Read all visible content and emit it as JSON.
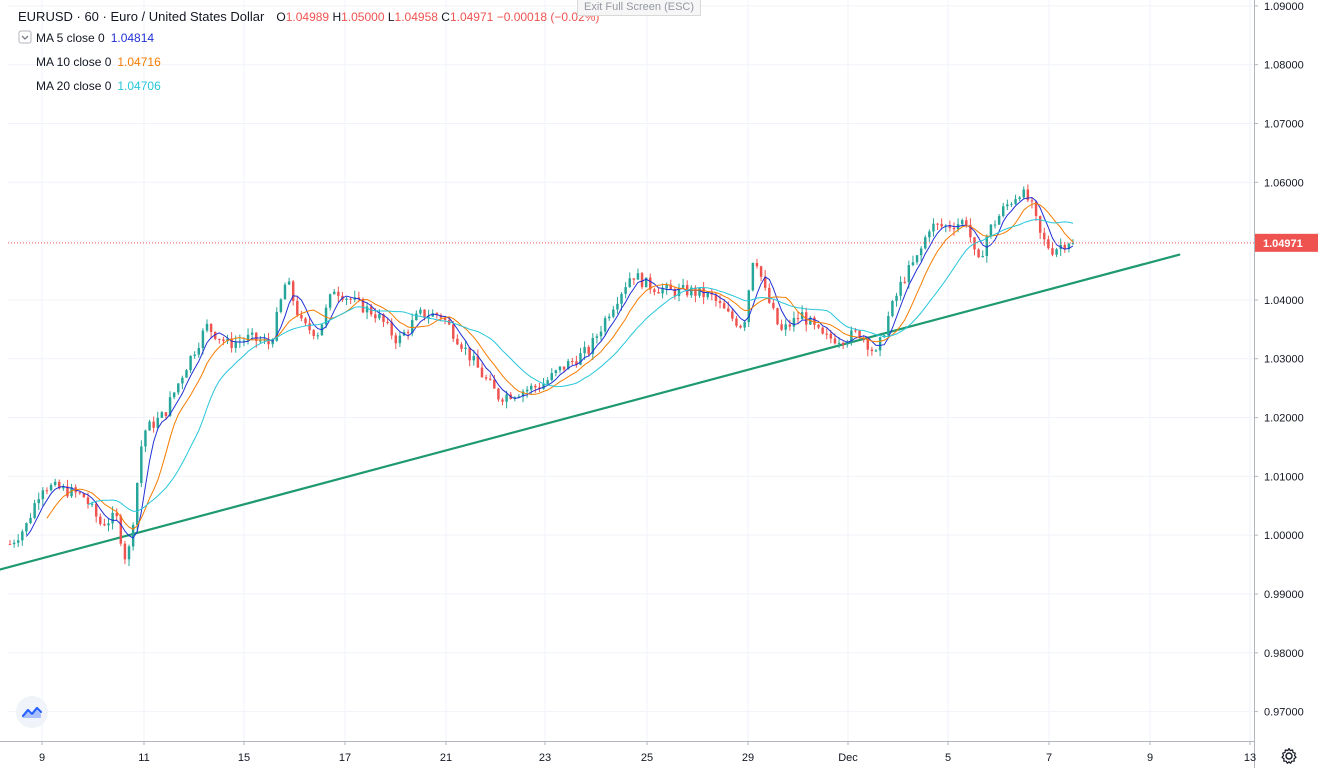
{
  "header": {
    "symbol_title": "EURUSD · 60 · Euro / United States Dollar",
    "ohlc": {
      "o_label": "O",
      "o_value": "1.04989",
      "h_label": "H",
      "h_value": "1.05000",
      "l_label": "L",
      "l_value": "1.04958",
      "c_label": "C",
      "c_value": "1.04971",
      "change": "−0.00018 (−0.02%)"
    },
    "exit_fullscreen": "Exit Full Screen (ESC)"
  },
  "indicators": [
    {
      "label": "MA 5 close 0",
      "value": "1.04814",
      "color": "#2130d6"
    },
    {
      "label": "MA 10 close 0",
      "value": "1.04716",
      "color": "#f57c00"
    },
    {
      "label": "MA 20 close 0",
      "value": "1.04706",
      "color": "#26c6da"
    }
  ],
  "colors": {
    "up": "#26a69a",
    "down": "#ef5350",
    "trendline": "#1e9a6e",
    "price_line": "#ef5350",
    "grid": "#f0f3fa"
  },
  "icons": {
    "logo": "tradingview-logo-icon",
    "settings": "gear-icon"
  },
  "chart_data": {
    "type": "candlestick",
    "title": "EURUSD · 60 · Euro / United States Dollar",
    "ylim": [
      0.965,
      1.091
    ],
    "y_ticks": [
      {
        "value": 1.09,
        "label": "1.09000"
      },
      {
        "value": 1.08,
        "label": "1.08000"
      },
      {
        "value": 1.07,
        "label": "1.07000"
      },
      {
        "value": 1.06,
        "label": "1.06000"
      },
      {
        "value": 1.04,
        "label": "1.04000"
      },
      {
        "value": 1.03,
        "label": "1.03000"
      },
      {
        "value": 1.02,
        "label": "1.02000"
      },
      {
        "value": 1.01,
        "label": "1.01000"
      },
      {
        "value": 1.0,
        "label": "1.00000"
      },
      {
        "value": 0.99,
        "label": "0.99000"
      },
      {
        "value": 0.98,
        "label": "0.98000"
      },
      {
        "value": 0.97,
        "label": "0.97000"
      }
    ],
    "x_ticks": [
      {
        "label": "9",
        "day": 9
      },
      {
        "label": "11",
        "day": 11
      },
      {
        "label": "15",
        "day": 15
      },
      {
        "label": "17",
        "day": 17
      },
      {
        "label": "21",
        "day": 21
      },
      {
        "label": "23",
        "day": 23
      },
      {
        "label": "25",
        "day": 25
      },
      {
        "label": "29",
        "day": 29
      },
      {
        "label": "Dec",
        "day": "Dec 1"
      },
      {
        "label": "5",
        "day": 5
      },
      {
        "label": "7",
        "day": 7
      },
      {
        "label": "9",
        "day": 9
      },
      {
        "label": "13",
        "day": 13
      }
    ],
    "last_price": {
      "value": 1.04971,
      "label": "1.04971"
    },
    "price_path": [
      {
        "t": 0,
        "v": 0.9985
      },
      {
        "t": 0.015,
        "v": 1.0015
      },
      {
        "t": 0.03,
        "v": 1.0085
      },
      {
        "t": 0.055,
        "v": 1.0075
      },
      {
        "t": 0.07,
        "v": 1.0065
      },
      {
        "t": 0.085,
        "v": 1.002
      },
      {
        "t": 0.1,
        "v": 1.003
      },
      {
        "t": 0.11,
        "v": 0.995
      },
      {
        "t": 0.115,
        "v": 1.0015
      },
      {
        "t": 0.125,
        "v": 1.0175
      },
      {
        "t": 0.145,
        "v": 1.0205
      },
      {
        "t": 0.165,
        "v": 1.0285
      },
      {
        "t": 0.185,
        "v": 1.0355
      },
      {
        "t": 0.205,
        "v": 1.0325
      },
      {
        "t": 0.225,
        "v": 1.0335
      },
      {
        "t": 0.245,
        "v": 1.0325
      },
      {
        "t": 0.26,
        "v": 1.0435
      },
      {
        "t": 0.275,
        "v": 1.0355
      },
      {
        "t": 0.29,
        "v": 1.0345
      },
      {
        "t": 0.305,
        "v": 1.042
      },
      {
        "t": 0.325,
        "v": 1.0395
      },
      {
        "t": 0.345,
        "v": 1.0375
      },
      {
        "t": 0.365,
        "v": 1.033
      },
      {
        "t": 0.385,
        "v": 1.0375
      },
      {
        "t": 0.405,
        "v": 1.0375
      },
      {
        "t": 0.425,
        "v": 1.0325
      },
      {
        "t": 0.445,
        "v": 1.027
      },
      {
        "t": 0.46,
        "v": 1.0235
      },
      {
        "t": 0.48,
        "v": 1.0245
      },
      {
        "t": 0.5,
        "v": 1.0255
      },
      {
        "t": 0.52,
        "v": 1.0285
      },
      {
        "t": 0.545,
        "v": 1.0315
      },
      {
        "t": 0.565,
        "v": 1.0385
      },
      {
        "t": 0.585,
        "v": 1.0445
      },
      {
        "t": 0.6,
        "v": 1.0425
      },
      {
        "t": 0.62,
        "v": 1.0415
      },
      {
        "t": 0.64,
        "v": 1.0415
      },
      {
        "t": 0.66,
        "v": 1.0405
      },
      {
        "t": 0.675,
        "v": 1.0375
      },
      {
        "t": 0.69,
        "v": 1.0355
      },
      {
        "t": 0.7,
        "v": 1.0485
      },
      {
        "t": 0.71,
        "v": 1.0415
      },
      {
        "t": 0.725,
        "v": 1.0345
      },
      {
        "t": 0.745,
        "v": 1.0375
      },
      {
        "t": 0.765,
        "v": 1.0335
      },
      {
        "t": 0.785,
        "v": 1.0335
      },
      {
        "t": 0.8,
        "v": 1.0345
      },
      {
        "t": 0.815,
        "v": 1.0305
      },
      {
        "t": 0.825,
        "v": 1.0365
      },
      {
        "t": 0.84,
        "v": 1.0435
      },
      {
        "t": 0.855,
        "v": 1.0475
      },
      {
        "t": 0.865,
        "v": 1.0525
      },
      {
        "t": 0.88,
        "v": 1.0525
      },
      {
        "t": 0.9,
        "v": 1.0535
      },
      {
        "t": 0.91,
        "v": 1.0455
      },
      {
        "t": 0.92,
        "v": 1.0515
      },
      {
        "t": 0.935,
        "v": 1.0555
      },
      {
        "t": 0.95,
        "v": 1.0585
      },
      {
        "t": 0.96,
        "v": 1.0565
      },
      {
        "t": 0.97,
        "v": 1.0505
      },
      {
        "t": 0.98,
        "v": 1.0485
      },
      {
        "t": 0.99,
        "v": 1.0495
      },
      {
        "t": 1.0,
        "v": 1.0505
      }
    ],
    "ma_series": [
      {
        "name": "MA 5 close 0",
        "window": 5,
        "color": "#2130d6"
      },
      {
        "name": "MA 10 close 0",
        "window": 10,
        "color": "#f57c00"
      },
      {
        "name": "MA 20 close 0",
        "window": 20,
        "color": "#26c6da"
      }
    ],
    "trendline": {
      "start": {
        "t": -0.05,
        "v": 0.9922
      },
      "end": {
        "t": 1.1,
        "v": 1.0477
      }
    },
    "candle_count": 260,
    "series_time_span": {
      "start": "Nov 8",
      "end": "Dec 7"
    }
  }
}
